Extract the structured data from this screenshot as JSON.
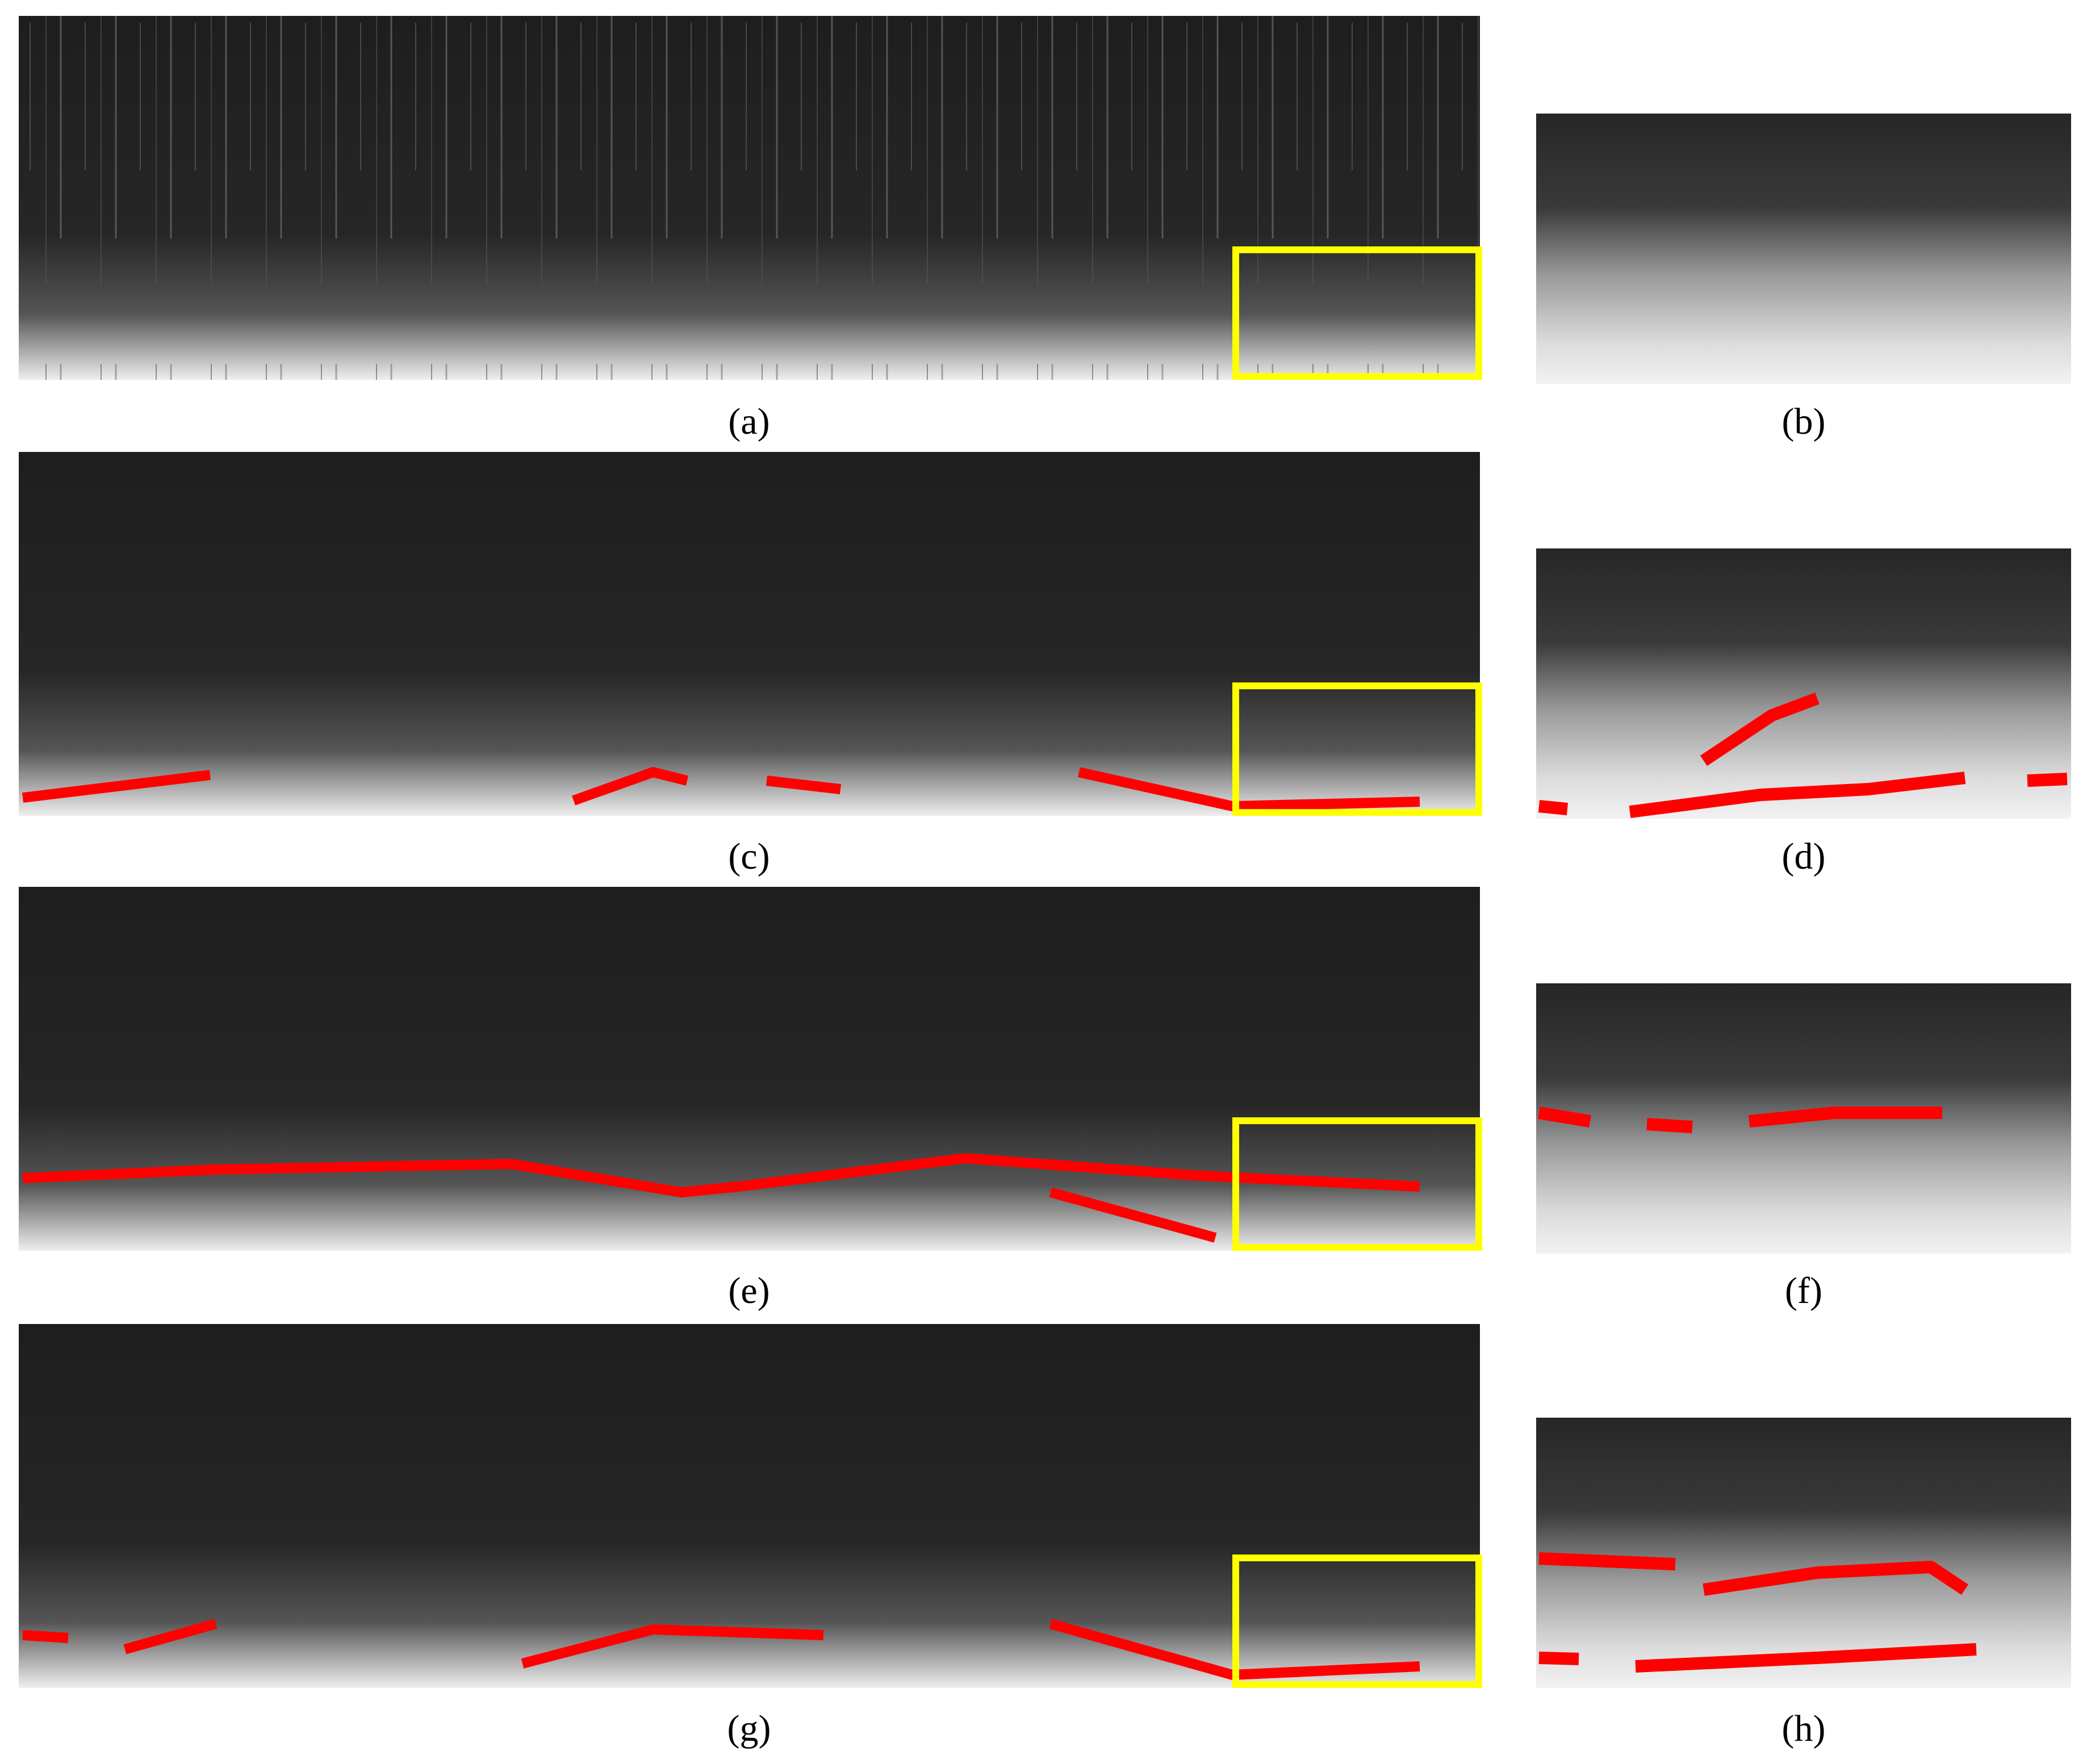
{
  "labels": [
    "(a)",
    "(b)",
    "(c)",
    "(d)",
    "(e)",
    "(f)",
    "(g)",
    "(h)"
  ]
}
